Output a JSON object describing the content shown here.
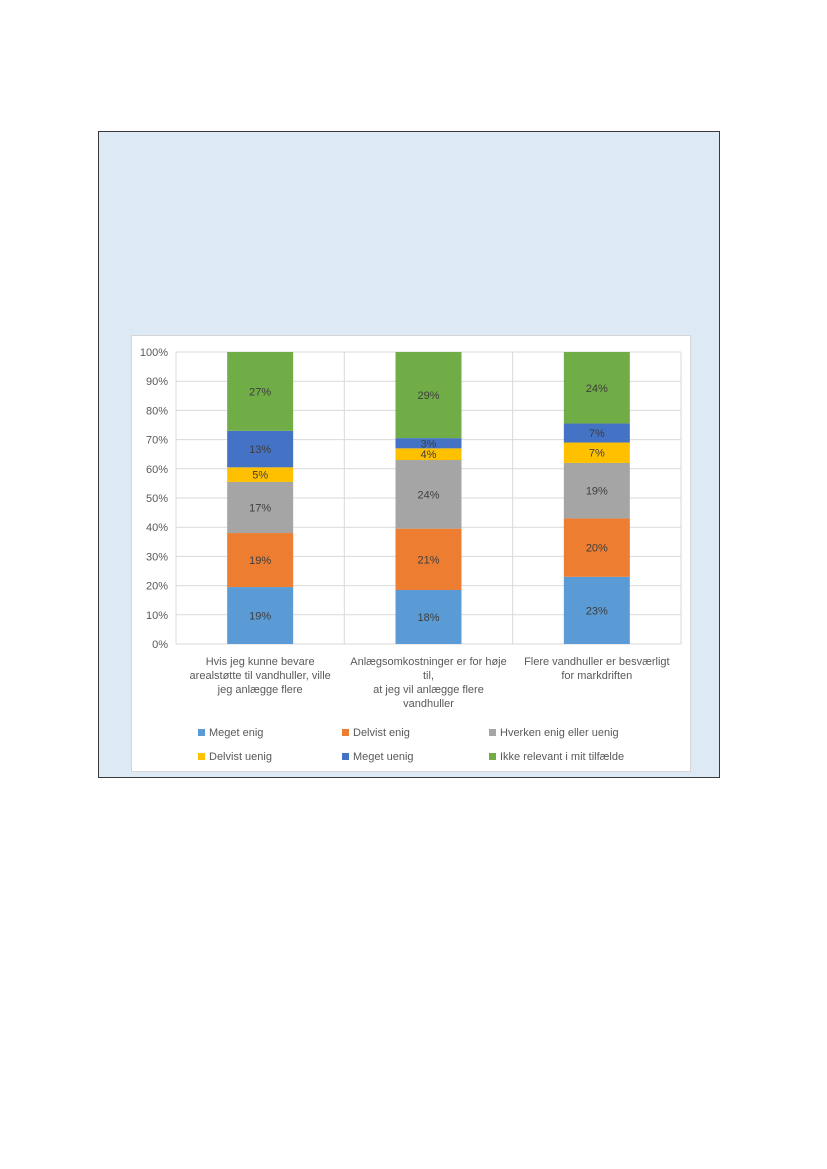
{
  "chart_data": {
    "type": "bar",
    "stacked": true,
    "categories": [
      [
        "Hvis jeg kunne bevare",
        "arealstøtte til vandhuller, ville",
        "jeg anlægge flere"
      ],
      [
        "Anlægsomkostninger er for høje",
        "til,",
        "at jeg vil anlægge flere",
        "vandhuller"
      ],
      [
        "Flere vandhuller er besværligt",
        "for markdriften"
      ]
    ],
    "series": [
      {
        "name": "Meget enig",
        "color": "#5b9bd5",
        "values": [
          19.5,
          18.5,
          23
        ],
        "labels": [
          "19%",
          "18%",
          "23%"
        ]
      },
      {
        "name": "Delvist enig",
        "color": "#ed7d31",
        "values": [
          18.5,
          21,
          20
        ],
        "labels": [
          "19%",
          "21%",
          "20%"
        ]
      },
      {
        "name": "Hverken enig eller uenig",
        "color": "#a5a5a5",
        "values": [
          17.5,
          23.5,
          19
        ],
        "labels": [
          "17%",
          "24%",
          "19%"
        ]
      },
      {
        "name": "Delvist uenig",
        "color": "#ffc000",
        "values": [
          5,
          4,
          7
        ],
        "labels": [
          "5%",
          "4%",
          "7%"
        ]
      },
      {
        "name": "Meget uenig",
        "color": "#4472c4",
        "values": [
          12.5,
          3.5,
          6.5
        ],
        "labels": [
          "13%",
          "3%",
          "7%"
        ]
      },
      {
        "name": "Ikke relevant i mit tilfælde",
        "color": "#70ad47",
        "values": [
          27,
          29.5,
          24.5
        ],
        "labels": [
          "27%",
          "29%",
          "24%"
        ]
      }
    ],
    "yticks": [
      "0%",
      "10%",
      "20%",
      "30%",
      "40%",
      "50%",
      "60%",
      "70%",
      "80%",
      "90%",
      "100%"
    ],
    "ylim": [
      0,
      100
    ],
    "grid": true,
    "legend_position": "bottom"
  }
}
